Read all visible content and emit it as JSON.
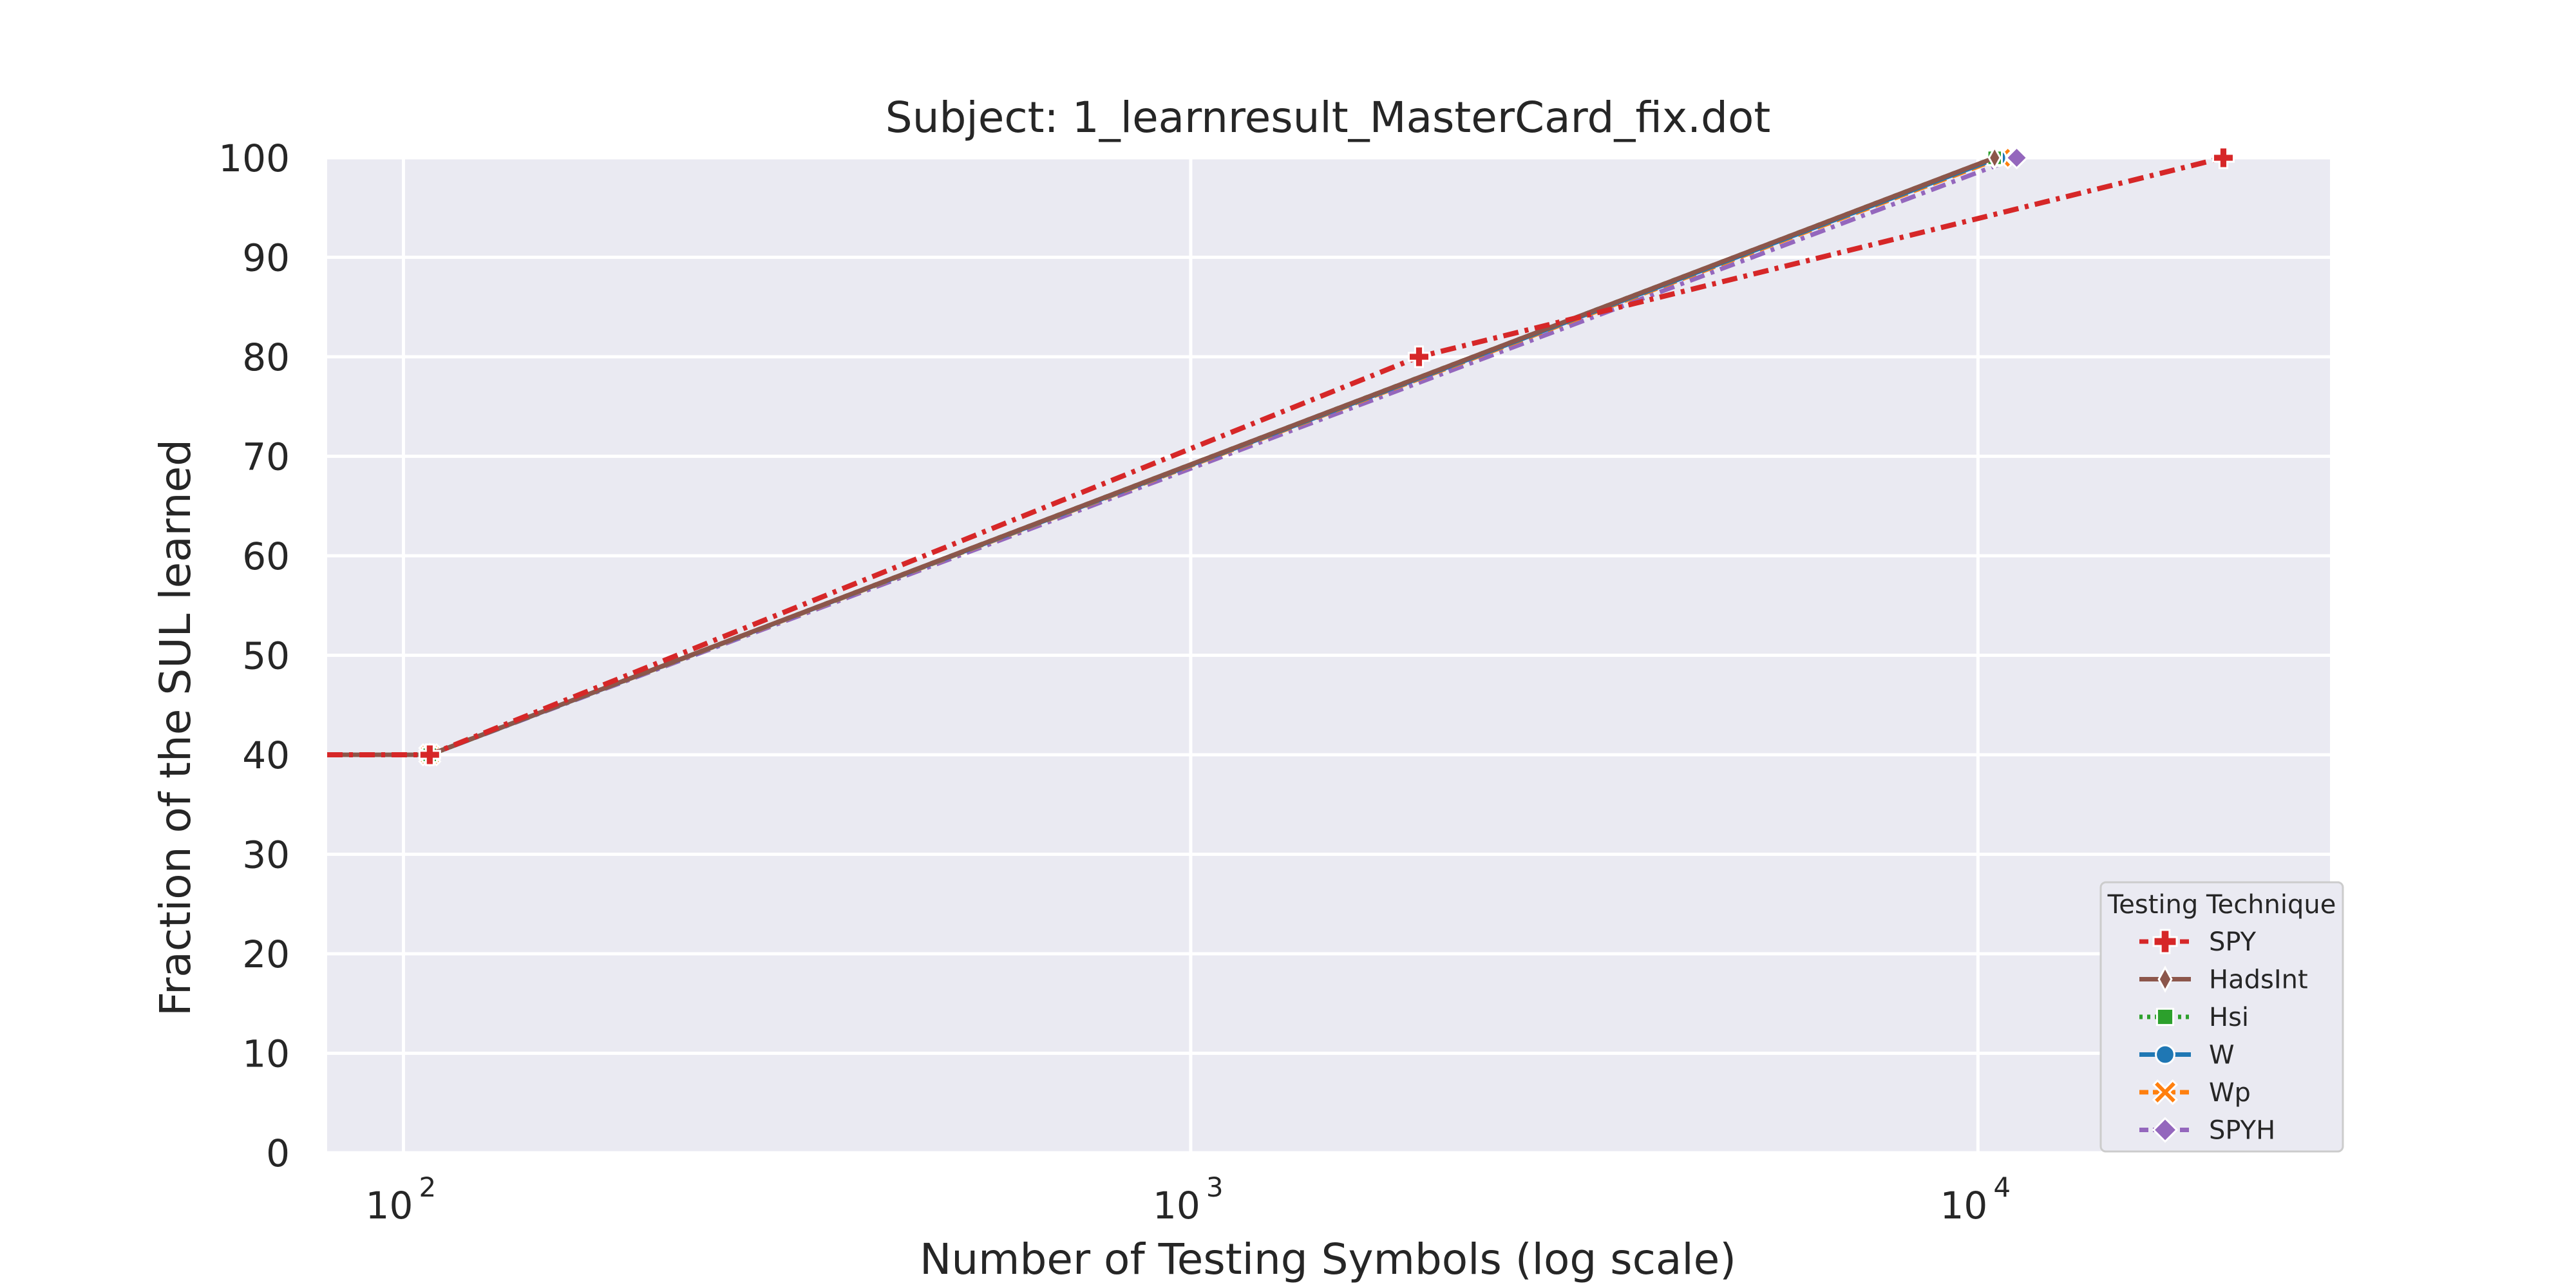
{
  "chart_data": {
    "type": "line",
    "title": "Subject: 1_learnresult_MasterCard_fix.dot",
    "xlabel": "Number of Testing Symbols (log scale)",
    "ylabel": "Fraction of the SUL learned",
    "xscale": "log",
    "xlim": [
      80,
      28000
    ],
    "ylim": [
      0,
      100
    ],
    "xticks": [
      {
        "value": 100,
        "base": "10",
        "exp": "2"
      },
      {
        "value": 1000,
        "base": "10",
        "exp": "3"
      },
      {
        "value": 10000,
        "base": "10",
        "exp": "4"
      }
    ],
    "yticks": [
      0,
      10,
      20,
      30,
      40,
      50,
      60,
      70,
      80,
      90,
      100
    ],
    "grid": true,
    "background": "#eaeaf2",
    "legend": {
      "title": "Testing Technique",
      "position": "lower-right"
    },
    "series": [
      {
        "name": "SPY",
        "color": "#d62728",
        "marker": "plus",
        "linestyle": "dashdot",
        "points": [
          [
            80,
            40
          ],
          [
            108,
            40
          ],
          [
            1950,
            80
          ],
          [
            20500,
            100
          ]
        ]
      },
      {
        "name": "HadsInt",
        "color": "#8c564b",
        "marker": "diamond-thin",
        "linestyle": "solid",
        "points": [
          [
            80,
            40
          ],
          [
            108,
            40
          ],
          [
            10500,
            100
          ]
        ]
      },
      {
        "name": "Hsi",
        "color": "#2ca02c",
        "marker": "square",
        "linestyle": "dotted",
        "points": [
          [
            80,
            40
          ],
          [
            108,
            40
          ],
          [
            10500,
            100
          ]
        ]
      },
      {
        "name": "W",
        "color": "#1f77b4",
        "marker": "circle",
        "linestyle": "solid",
        "points": [
          [
            80,
            40
          ],
          [
            108,
            40
          ],
          [
            10600,
            100
          ]
        ]
      },
      {
        "name": "Wp",
        "color": "#ff7f0e",
        "marker": "x",
        "linestyle": "dashed",
        "points": [
          [
            80,
            40
          ],
          [
            108,
            40
          ],
          [
            10700,
            100
          ]
        ]
      },
      {
        "name": "SPYH",
        "color": "#9467bd",
        "marker": "diamond",
        "linestyle": "dashdot",
        "points": [
          [
            80,
            40
          ],
          [
            108,
            40
          ],
          [
            11200,
            100
          ]
        ]
      }
    ]
  }
}
